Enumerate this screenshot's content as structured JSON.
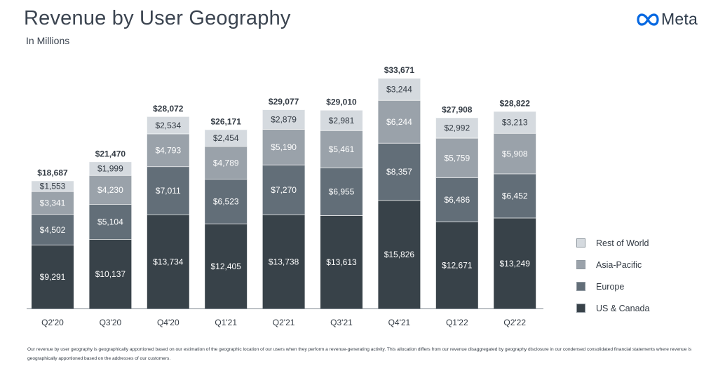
{
  "header": {
    "title": "Revenue by User Geography",
    "subtitle": "In Millions",
    "logo_text": "Meta"
  },
  "chart_data": {
    "type": "bar",
    "stacked": true,
    "title": "Revenue by User Geography",
    "subtitle": "In Millions",
    "xlabel": "",
    "ylabel": "",
    "ylim": [
      0,
      34000
    ],
    "grid": false,
    "legend_position": "right",
    "categories": [
      "Q2'20",
      "Q3'20",
      "Q4'20",
      "Q1'21",
      "Q2'21",
      "Q3'21",
      "Q4'21",
      "Q1'22",
      "Q2'22"
    ],
    "series": [
      {
        "name": "US & Canada",
        "color": "#384249",
        "text_color": "#ffffff",
        "values": [
          9291,
          10137,
          13734,
          12405,
          13738,
          13613,
          15826,
          12671,
          13249
        ],
        "labels": [
          "$9,291",
          "$10,137",
          "$13,734",
          "$12,405",
          "$13,738",
          "$13,613",
          "$15,826",
          "$12,671",
          "$13,249"
        ]
      },
      {
        "name": "Europe",
        "color": "#626e78",
        "text_color": "#ffffff",
        "values": [
          4502,
          5104,
          7011,
          6523,
          7270,
          6955,
          8357,
          6486,
          6452
        ],
        "labels": [
          "$4,502",
          "$5,104",
          "$7,011",
          "$6,523",
          "$7,270",
          "$6,955",
          "$8,357",
          "$6,486",
          "$6,452"
        ]
      },
      {
        "name": "Asia-Pacific",
        "color": "#9aa2aa",
        "text_color": "#ffffff",
        "values": [
          3341,
          4230,
          4793,
          4789,
          5190,
          5461,
          6244,
          5759,
          5908
        ],
        "labels": [
          "$3,341",
          "$4,230",
          "$4,793",
          "$4,789",
          "$5,190",
          "$5,461",
          "$6,244",
          "$5,759",
          "$5,908"
        ]
      },
      {
        "name": "Rest of World",
        "color": "#d5dadf",
        "text_color": "#333b44",
        "values": [
          1553,
          1999,
          2534,
          2454,
          2879,
          2981,
          3244,
          2992,
          3213
        ],
        "labels": [
          "$1,553",
          "$1,999",
          "$2,534",
          "$2,454",
          "$2,879",
          "$2,981",
          "$3,244",
          "$2,992",
          "$3,213"
        ]
      }
    ],
    "totals": [
      18687,
      21470,
      28072,
      26171,
      29077,
      29010,
      33671,
      27908,
      28822
    ],
    "total_labels": [
      "$18,687",
      "$21,470",
      "$28,072",
      "$26,171",
      "$29,077",
      "$29,010",
      "$33,671",
      "$27,908",
      "$28,822"
    ]
  },
  "legend": {
    "items": [
      {
        "label": "Rest of World",
        "color": "#d5dadf"
      },
      {
        "label": "Asia-Pacific",
        "color": "#9aa2aa"
      },
      {
        "label": "Europe",
        "color": "#626e78"
      },
      {
        "label": "US & Canada",
        "color": "#384249"
      }
    ]
  },
  "footnote": {
    "text": "Our revenue by user geography is geographically apportioned based on our estimation of the geographic location of our users when they perform a revenue-generating activity. This allocation differs from our revenue disaggregated by geography disclosure in our condensed consolidated financial statements where revenue is geographically apportioned based on the addresses of our customers."
  }
}
